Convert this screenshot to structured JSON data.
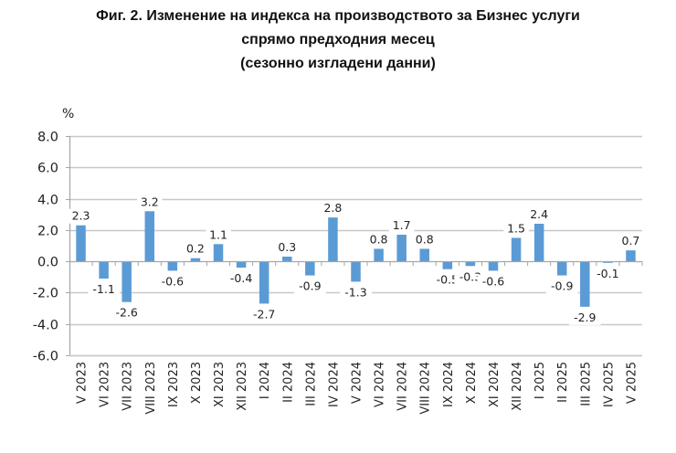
{
  "title": {
    "line1": "Фиг. 2. Изменение на индекса на производството за Бизнес услуги",
    "line2": "спрямо предходния месец",
    "line3": "(сезонно изгладени данни)"
  },
  "unit_label": "%",
  "colors": {
    "bar": "#5B9BD5",
    "grid": "#C8C8C8",
    "axis": "#A6A6A6",
    "text": "#222222"
  },
  "chart_data": {
    "type": "bar",
    "title": "Фиг. 2. Изменение на индекса на производството за Бизнес услуги спрямо предходния месец (сезонно изгладени данни)",
    "xlabel": "",
    "ylabel": "%",
    "ylim": [
      -6.0,
      8.0
    ],
    "yticks": [
      "8.0",
      "6.0",
      "4.0",
      "2.0",
      "0.0",
      "-2.0",
      "-4.0",
      "-6.0"
    ],
    "grid": true,
    "legend": "none",
    "categories": [
      "V 2023",
      "VI 2023",
      "VII 2023",
      "VIII 2023",
      "IX 2023",
      "X 2023",
      "XI 2023",
      "XII 2023",
      "I 2024",
      "II 2024",
      "III 2024",
      "IV 2024",
      "V 2024",
      "VI 2024",
      "VII 2024",
      "VIII 2024",
      "IX 2024",
      "X 2024",
      "XI 2024",
      "XII 2024",
      "I 2025",
      "II 2025",
      "III 2025",
      "IV 2025",
      "V 2025"
    ],
    "values": [
      2.3,
      -1.1,
      -2.6,
      3.2,
      -0.6,
      0.2,
      1.1,
      -0.4,
      -2.7,
      0.3,
      -0.9,
      2.8,
      -1.3,
      0.8,
      1.7,
      0.8,
      -0.5,
      -0.3,
      -0.6,
      1.5,
      2.4,
      -0.9,
      -2.9,
      -0.1,
      0.7
    ],
    "data_labels": [
      "2.3",
      "-1.1",
      "-2.6",
      "3.2",
      "-0.6",
      "0.2",
      "1.1",
      "-0.4",
      "-2.7",
      "0.3",
      "-0.9",
      "2.8",
      "-1.3",
      "0.8",
      "1.7",
      "0.8",
      "-0.5",
      "-0.3",
      "-0.6",
      "1.5",
      "2.4",
      "-0.9",
      "-2.9",
      "-0.1",
      "0.7"
    ]
  }
}
